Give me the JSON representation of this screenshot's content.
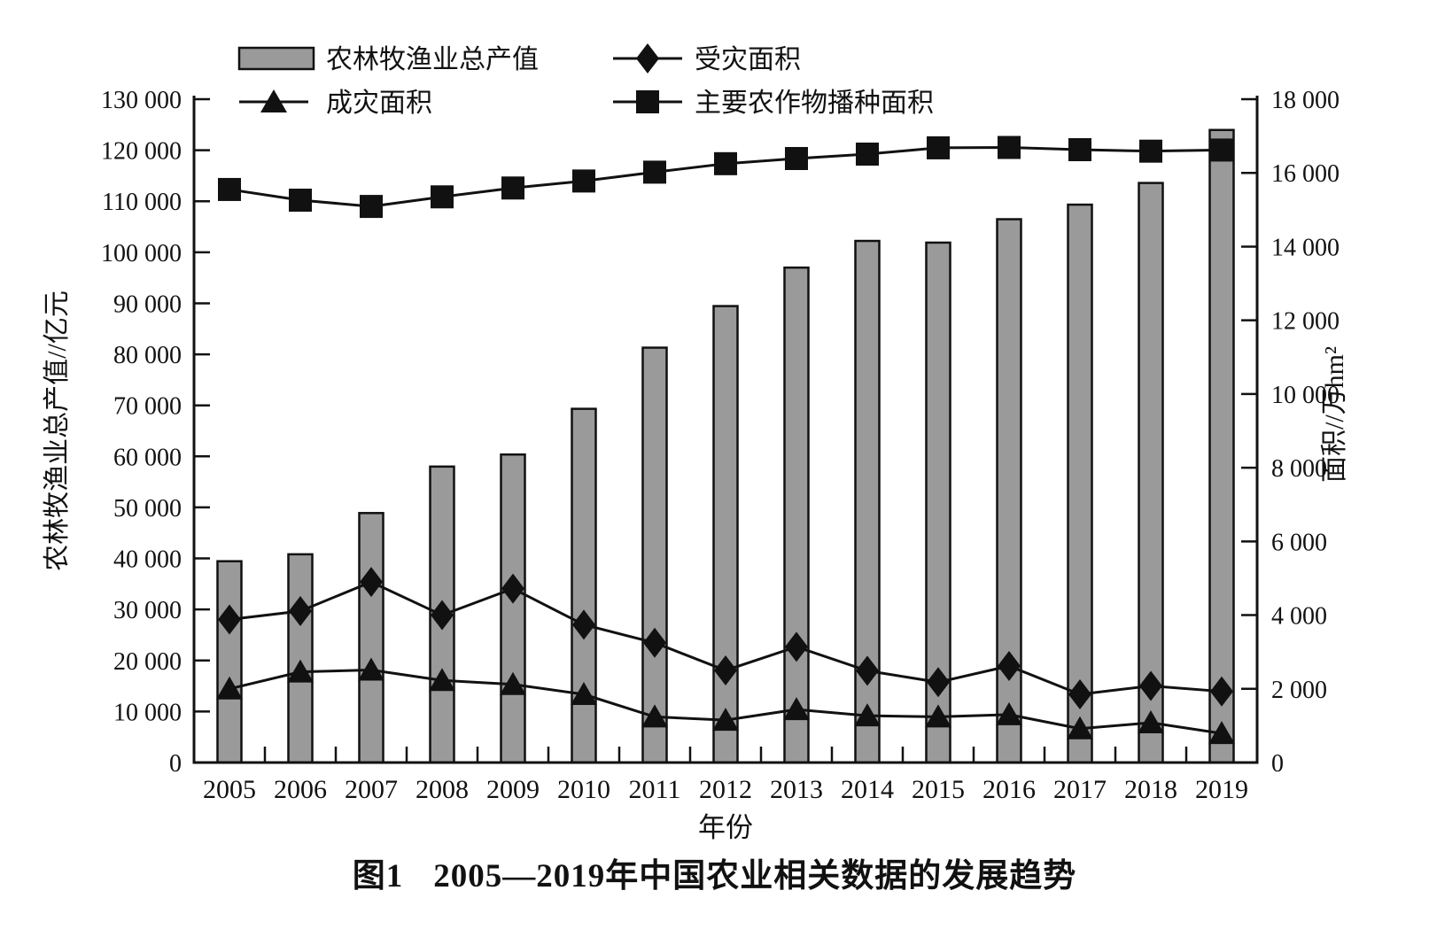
{
  "figure": {
    "caption_label": "图1",
    "caption_text": "2005—2019年中国农业相关数据的发展趋势"
  },
  "chart_data": {
    "type": "bar+line combo",
    "title": "2005—2019年中国农业相关数据的发展趋势",
    "categories": [
      "2005",
      "2006",
      "2007",
      "2008",
      "2009",
      "2010",
      "2011",
      "2012",
      "2013",
      "2014",
      "2015",
      "2016",
      "2017",
      "2018",
      "2019"
    ],
    "xlabel": "年份",
    "grid": "off",
    "legend_position": "top, 2x2, no border",
    "left_axis": {
      "label": "农林牧渔业总产值//亿元",
      "min": 0,
      "max": 130000,
      "step": 10000
    },
    "right_axis": {
      "label": "面积//万hm²",
      "min": 0,
      "max": 18000,
      "step": 2000
    },
    "series": [
      {
        "name": "农林牧渔业总产值",
        "type": "bar",
        "axis": "left",
        "marker": "bar-swatch",
        "values": [
          39451,
          40811,
          48893,
          58002,
          60361,
          69320,
          81304,
          89453,
          96995,
          102226,
          101894,
          106479,
          109332,
          113580,
          123968
        ]
      },
      {
        "name": "受灾面积",
        "type": "line",
        "axis": "right",
        "marker": "diamond",
        "values": [
          3880,
          4110,
          4900,
          4000,
          4720,
          3740,
          3250,
          2500,
          3140,
          2490,
          2180,
          2620,
          1850,
          2080,
          1930
        ]
      },
      {
        "name": "成灾面积",
        "type": "line",
        "axis": "right",
        "marker": "triangle",
        "values": [
          2000,
          2460,
          2510,
          2230,
          2120,
          1850,
          1240,
          1150,
          1440,
          1270,
          1240,
          1300,
          920,
          1080,
          790
        ]
      },
      {
        "name": "主要农作物播种面积",
        "type": "line",
        "axis": "right",
        "marker": "square",
        "values": [
          15550,
          15260,
          15090,
          15350,
          15590,
          15780,
          16020,
          16250,
          16390,
          16510,
          16680,
          16690,
          16630,
          16590,
          16620
        ]
      }
    ],
    "colors": {
      "bar_fill": "#9a9a9a",
      "ink": "#111111",
      "background": "#ffffff"
    }
  }
}
